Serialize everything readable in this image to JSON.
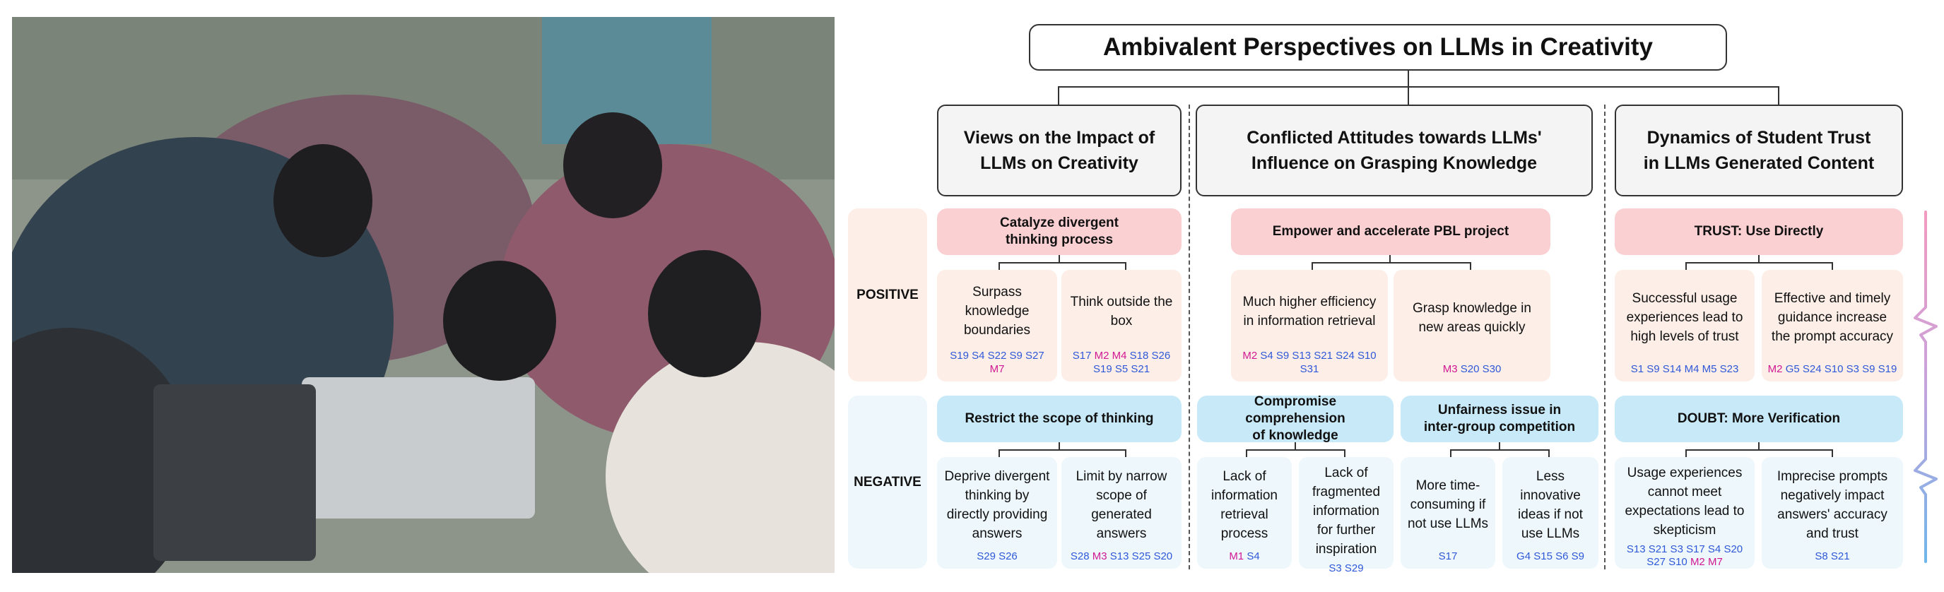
{
  "title": "Ambivalent Perspectives on LLMs in Creativity",
  "categories": [
    {
      "label_line1": "Views on the Impact of",
      "label_line2": "LLMs on Creativity"
    },
    {
      "label_line1": "Conflicted Attitudes towards LLMs'",
      "label_line2": "Influence on Grasping Knowledge"
    },
    {
      "label_line1": "Dynamics of Student Trust",
      "label_line2": "in LLMs Generated Content"
    }
  ],
  "rows": {
    "positive": "POSITIVE",
    "negative": "NEGATIVE"
  },
  "heads": {
    "c1_pos_l1": "Catalyze divergent",
    "c1_pos_l2": "thinking process",
    "c1_neg": "Restrict the scope of thinking",
    "c2_pos": "Empower and accelerate PBL project",
    "c2_neg_a_l1": "Compromise comprehension",
    "c2_neg_a_l2": "of knowledge",
    "c2_neg_b_l1": "Unfairness issue in",
    "c2_neg_b_l2": "inter-group competition",
    "c3_pos_bold": "TRUST",
    "c3_pos_rest": ": Use Directly",
    "c3_neg_bold": "DOUBT",
    "c3_neg_rest": ": More Verification"
  },
  "cards": {
    "c1p1": {
      "text": "Surpass knowledge boundaries",
      "ids": [
        {
          "t": "S19 S4 S22 S9 S27"
        },
        {
          "t": "M7",
          "m": true
        }
      ]
    },
    "c1p2": {
      "text": "Think outside the box",
      "ids": [
        {
          "t": "S17"
        },
        {
          "t": "M2 M4",
          "m": true
        },
        {
          "t": "S18 S26 S19 S5 S21"
        }
      ]
    },
    "c2p1": {
      "text": "Much higher efficiency in information retrieval",
      "ids": [
        {
          "t": "M2",
          "m": true
        },
        {
          "t": "S4 S9 S13 S21 S24 S10 S31"
        }
      ]
    },
    "c2p2": {
      "text": "Grasp knowledge in new areas quickly",
      "ids": [
        {
          "t": "M3",
          "m": true
        },
        {
          "t": "S20 S30"
        }
      ]
    },
    "c3p1": {
      "text": "Successful usage experiences lead to high levels of trust",
      "ids": [
        {
          "t": "S1 S9 S14 M4 M5 S23"
        }
      ]
    },
    "c3p2": {
      "text": "Effective and timely guidance increase the prompt accuracy",
      "ids": [
        {
          "t": "M2",
          "m": true
        },
        {
          "t": "G5 S24 S10 S3 S9 S19"
        }
      ]
    },
    "c1n1": {
      "text": "Deprive divergent thinking by directly providing answers",
      "ids": [
        {
          "t": "S29 S26"
        }
      ]
    },
    "c1n2": {
      "text": "Limit by narrow scope of generated answers",
      "ids": [
        {
          "t": "S28"
        },
        {
          "t": "M3",
          "m": true
        },
        {
          "t": "S13 S25 S20"
        }
      ]
    },
    "c2n1": {
      "text": "Lack of information retrieval process",
      "ids": [
        {
          "t": "M1",
          "m": true
        },
        {
          "t": "S4"
        }
      ]
    },
    "c2n2": {
      "text": "Lack of fragmented information for further inspiration",
      "ids": [
        {
          "t": "S3 S29"
        }
      ]
    },
    "c2n3": {
      "text": "More time-consuming if not use LLMs",
      "ids": [
        {
          "t": "S17"
        }
      ]
    },
    "c2n4": {
      "text": "Less innovative ideas if not use LLMs",
      "ids": [
        {
          "t": "G4 S15 S6 S9"
        }
      ]
    },
    "c3n1": {
      "text": "Usage experiences cannot meet expectations lead to skepticism",
      "ids": [
        {
          "t": "S13 S21 S3 S17 S4 S20 S27 S10"
        },
        {
          "t": "M2 M7",
          "m": true
        }
      ]
    },
    "c3n2": {
      "text": "Imprecise prompts negatively impact answers' accuracy and trust",
      "ids": [
        {
          "t": "S8 S21"
        }
      ]
    }
  },
  "colors": {
    "pink_head": "#fbd0d3",
    "blue_head": "#c8e9f8",
    "pink_card": "#fdeee7",
    "blue_card": "#eef8fc",
    "student_id": "#2f58d8",
    "mentor_id": "#d11892"
  }
}
